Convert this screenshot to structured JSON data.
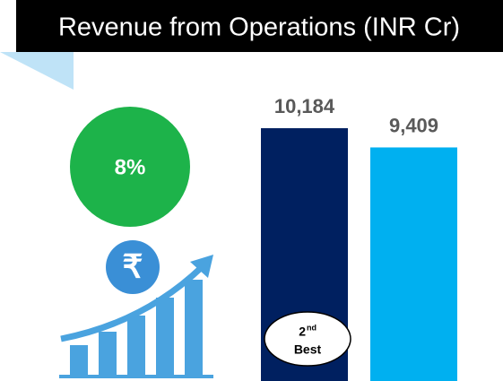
{
  "chart_data": {
    "type": "bar",
    "title": "Revenue from Operations (INR Cr)",
    "categories": [
      null,
      null
    ],
    "values": [
      10184,
      9409
    ],
    "value_labels": [
      "10,184",
      "9,409"
    ],
    "colors": [
      "#002060",
      "#00b0f0"
    ],
    "annotations": {
      "growth": "8%",
      "rank": {
        "number": "2",
        "suffix": "nd",
        "label": "Best"
      }
    }
  }
}
